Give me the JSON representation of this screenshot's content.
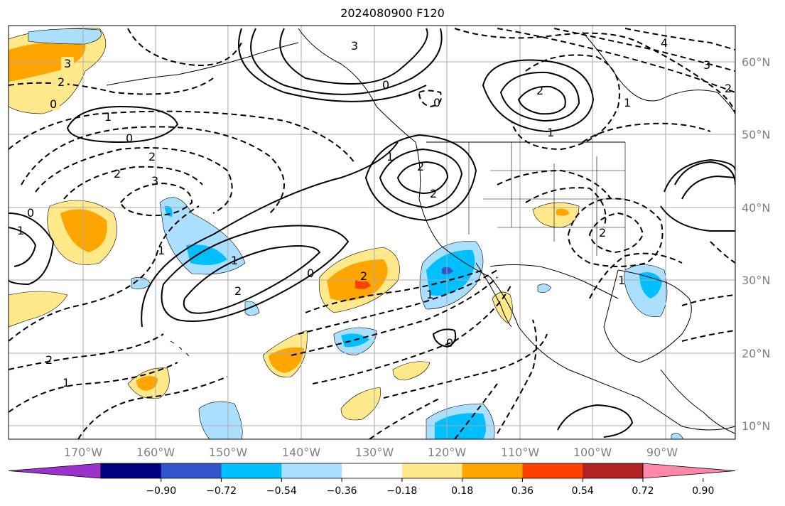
{
  "title": "2024080900 F120",
  "map": {
    "lon_labels": [
      "170°W",
      "160°W",
      "150°W",
      "140°W",
      "130°W",
      "120°W",
      "110°W",
      "100°W",
      "90°W"
    ],
    "lat_labels": [
      "60°N",
      "50°N",
      "40°N",
      "30°N",
      "20°N",
      "10°N"
    ],
    "grid": true,
    "contour_labels": [
      "3",
      "2",
      "0",
      "1",
      "0",
      "2",
      "3",
      "2",
      "1",
      "0",
      "2",
      "1",
      "0",
      "2",
      "1",
      "2",
      "1",
      "0",
      "1",
      "0",
      "2",
      "1",
      "2",
      "2",
      "1",
      "0",
      "3",
      "4",
      "3",
      "2",
      "1",
      "1",
      "2"
    ]
  },
  "colorbar": {
    "colors": [
      "#9933cc",
      "#000080",
      "#3355cc",
      "#00bfff",
      "#aadfff",
      "#ffffff",
      "#ffe98a",
      "#ffa500",
      "#ff4000",
      "#b22222",
      "#ff88aa"
    ],
    "tick_labels": [
      "−0.90",
      "−0.72",
      "−0.54",
      "−0.36",
      "−0.18",
      "0.18",
      "0.36",
      "0.54",
      "0.72",
      "0.90"
    ]
  }
}
